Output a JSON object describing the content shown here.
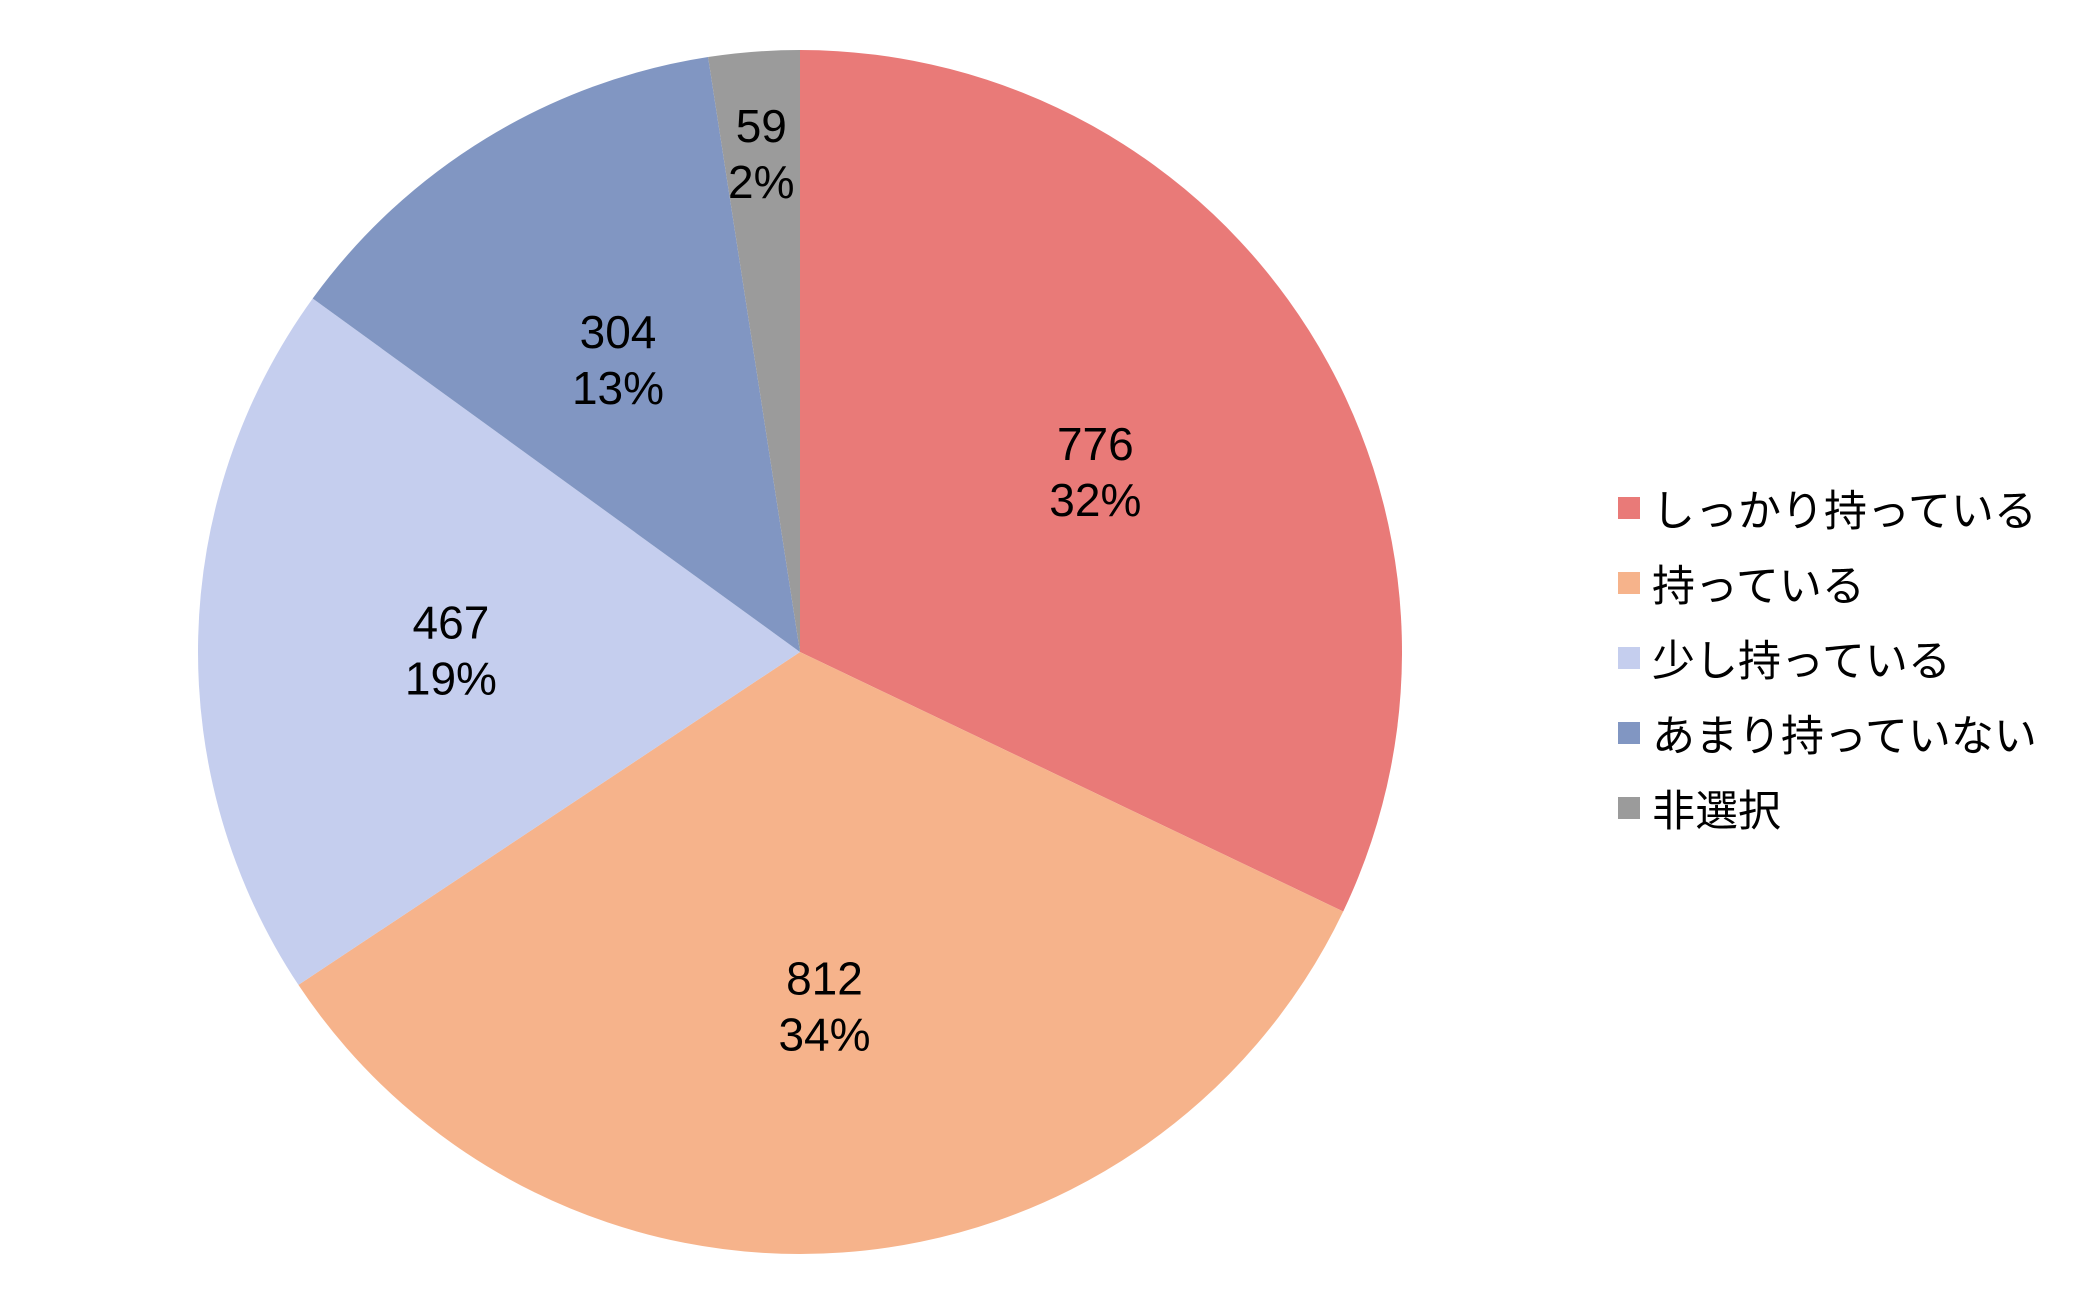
{
  "chart_data": {
    "type": "pie",
    "start_angle_deg": 0,
    "direction": "clockwise",
    "legend_position": "right",
    "slices": [
      {
        "label": "しっかり持っている",
        "value": 776,
        "percent_label": "32%",
        "color": "#E97A78"
      },
      {
        "label": "持っている",
        "value": 812,
        "percent_label": "34%",
        "color": "#F6B38B"
      },
      {
        "label": "少し持っている",
        "value": 467,
        "percent_label": "19%",
        "color": "#C5CEEE"
      },
      {
        "label": "あまり持っていない",
        "value": 304,
        "percent_label": "13%",
        "color": "#8196C2"
      },
      {
        "label": "非選択",
        "value": 59,
        "percent_label": "2%",
        "color": "#9B9B9B"
      }
    ]
  }
}
